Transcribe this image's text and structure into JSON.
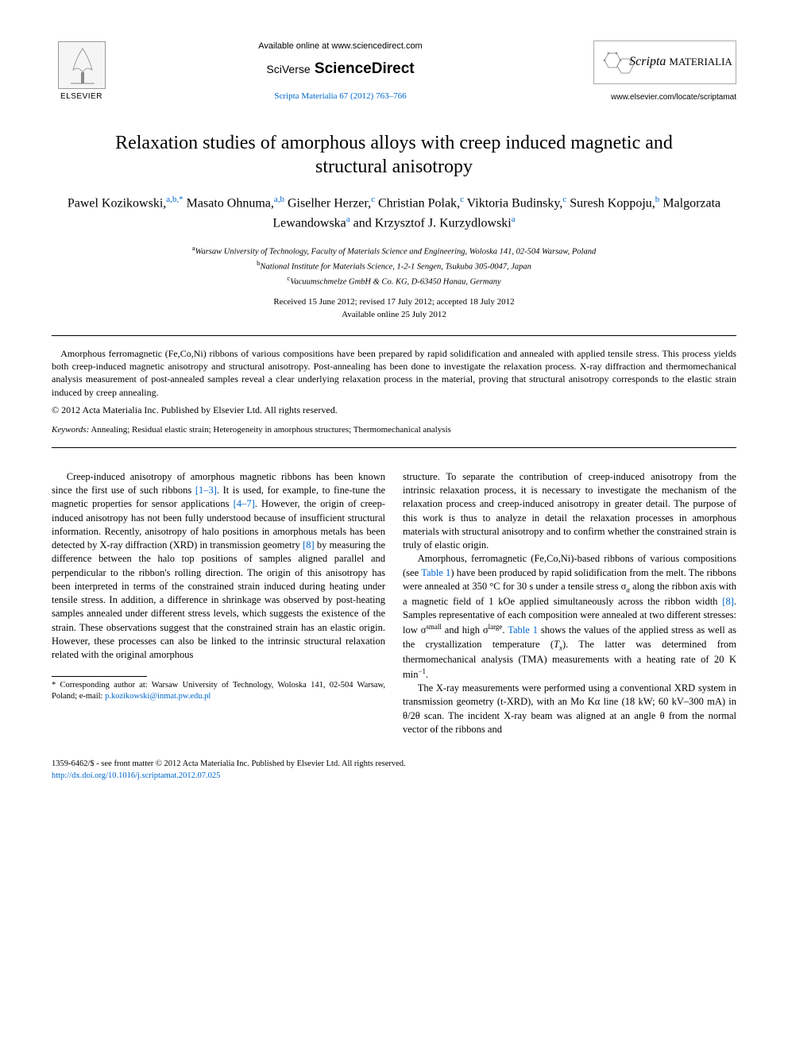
{
  "header": {
    "elsevier_label": "ELSEVIER",
    "available_text": "Available online at www.sciencedirect.com",
    "scidirect_prefix": "SciVerse",
    "scidirect_main": "ScienceDirect",
    "journal_ref": "Scripta Materialia 67 (2012) 763–766",
    "scripta_name": "Scripta",
    "scripta_suffix": "MATERIALIA",
    "journal_url": "www.elsevier.com/locate/scriptamat"
  },
  "title": "Relaxation studies of amorphous alloys with creep induced magnetic and structural anisotropy",
  "authors_html": "Pawel Kozikowski,<sup>a,b,*</sup> Masato Ohnuma,<sup>a,b</sup> Giselher Herzer,<sup>c</sup> Christian Polak,<sup>c</sup> Viktoria Budinsky,<sup>c</sup> Suresh Koppoju,<sup>b</sup> Malgorzata Lewandowska<sup>a</sup> and Krzysztof J. Kurzydlowski<sup>a</sup>",
  "affiliations": {
    "a": "Warsaw University of Technology, Faculty of Materials Science and Engineering, Woloska 141, 02-504 Warsaw, Poland",
    "b": "National Institute for Materials Science, 1-2-1 Sengen, Tsukuba 305-0047, Japan",
    "c": "Vacuumschmelze GmbH & Co. KG, D-63450 Hanau, Germany"
  },
  "dates": {
    "received": "Received 15 June 2012; revised 17 July 2012; accepted 18 July 2012",
    "online": "Available online 25 July 2012"
  },
  "abstract": "Amorphous ferromagnetic (Fe,Co,Ni) ribbons of various compositions have been prepared by rapid solidification and annealed with applied tensile stress. This process yields both creep-induced magnetic anisotropy and structural anisotropy. Post-annealing has been done to investigate the relaxation process. X-ray diffraction and thermomechanical analysis measurement of post-annealed samples reveal a clear underlying relaxation process in the material, proving that structural anisotropy corresponds to the elastic strain induced by creep annealing.",
  "copyright_line": "© 2012 Acta Materialia Inc. Published by Elsevier Ltd. All rights reserved.",
  "keywords_label": "Keywords:",
  "keywords": "Annealing; Residual elastic strain; Heterogeneity in amorphous structures; Thermomechanical analysis",
  "body": {
    "col1_p1_a": "Creep-induced anisotropy of amorphous magnetic ribbons has been known since the first use of such ribbons ",
    "col1_ref1": "[1–3]",
    "col1_p1_b": ". It is used, for example, to fine-tune the magnetic properties for sensor applications ",
    "col1_ref2": "[4–7]",
    "col1_p1_c": ". However, the origin of creep-induced anisotropy has not been fully understood because of insufficient structural information. Recently, anisotropy of halo positions in amorphous metals has been detected by X-ray diffraction (XRD) in transmission geometry ",
    "col1_ref3": "[8]",
    "col1_p1_d": " by measuring the difference between the halo top positions of samples aligned parallel and perpendicular to the ribbon's rolling direction. The origin of this anisotropy has been interpreted in terms of the constrained strain induced during heating under tensile stress. In addition, a difference in shrinkage was observed by post-heating samples annealed under different stress levels, which suggests the existence of the strain. These observations suggest that the constrained strain has an elastic origin. However, these processes can also be linked to the intrinsic structural relaxation related with the original amorphous",
    "col2_p1": "structure. To separate the contribution of creep-induced anisotropy from the intrinsic relaxation process, it is necessary to investigate the mechanism of the relaxation process and creep-induced anisotropy in greater detail. The purpose of this work is thus to analyze in detail the relaxation processes in amorphous materials with structural anisotropy and to confirm whether the constrained strain is truly of elastic origin.",
    "col2_p2_a": "Amorphous, ferromagnetic (Fe,Co,Ni)-based ribbons of various compositions (see ",
    "col2_tab1a": "Table 1",
    "col2_p2_b": ") have been produced by rapid solidification from the melt. The ribbons were annealed at 350 °C for 30 s under a tensile stress σ",
    "col2_p2_sub_a": "a",
    "col2_p2_c": " along the ribbon axis with a magnetic field of 1 kOe applied simultaneously across the ribbon width ",
    "col2_ref8": "[8]",
    "col2_p2_d": ". Samples representative of each composition were annealed at two different stresses: low σ",
    "col2_p2_sup_small": "small",
    "col2_p2_e": " and high σ",
    "col2_p2_sup_large": "large",
    "col2_p2_f": ". ",
    "col2_tab1b": "Table 1",
    "col2_p2_g": " shows the values of the applied stress as well as the crystallization temperature (",
    "col2_Tx": "T",
    "col2_Tx_sub": "x",
    "col2_p2_h": "). The latter was determined from thermomechanical analysis (TMA) measurements with a heating rate of 20 K min",
    "col2_p2_sup_m1": "−1",
    "col2_p2_i": ".",
    "col2_p3_a": "The X-ray measurements were performed using a conventional XRD system in transmission geometry (t-XRD), with an Mo Kα line (18 kW; 60 kV–300 mA) in θ/2θ scan. The incident X-ray beam was aligned at an angle θ from the normal vector of the ribbons and"
  },
  "footnote": {
    "marker": "*",
    "text_a": "Corresponding author at: Warsaw University of Technology, Woloska 141, 02-504 Warsaw, Poland; e-mail: ",
    "email": "p.kozikowski@inmat.pw.edu.pl"
  },
  "footer": {
    "issn_line": "1359-6462/$ - see front matter © 2012 Acta Materialia Inc. Published by Elsevier Ltd. All rights reserved.",
    "doi": "http://dx.doi.org/10.1016/j.scriptamat.2012.07.025"
  },
  "colors": {
    "link": "#0066cc",
    "text": "#000000",
    "bg": "#ffffff"
  }
}
